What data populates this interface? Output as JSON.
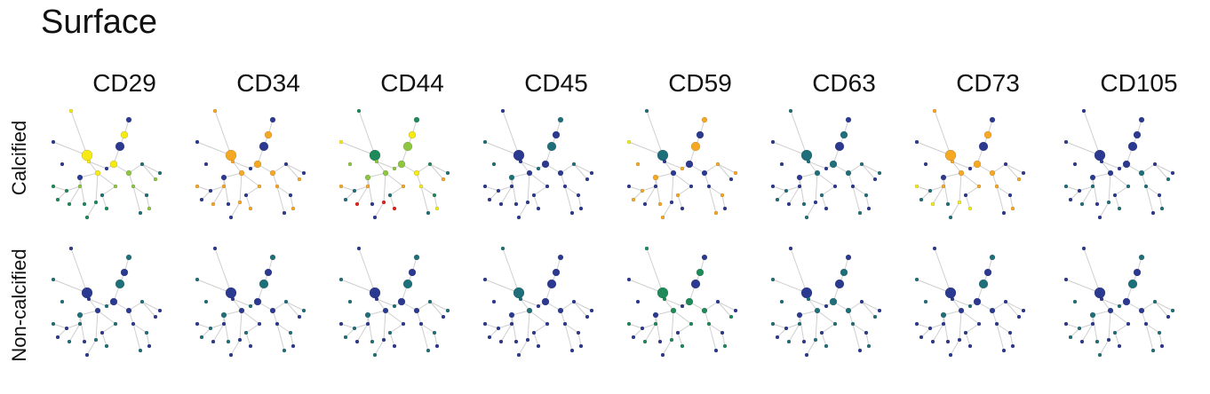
{
  "title": "Surface",
  "columns": [
    "CD29",
    "CD34",
    "CD44",
    "CD45",
    "CD59",
    "CD63",
    "CD73",
    "CD105"
  ],
  "rows": [
    "Calcified",
    "Non-calcified"
  ],
  "palette": {
    "navy": "#2b3990",
    "teal": "#1f6f7a",
    "green": "#1e8a5a",
    "lightgreen": "#8dc63f",
    "yellow": "#f5ea14",
    "orange": "#f7a823",
    "red": "#e2231a"
  }
}
